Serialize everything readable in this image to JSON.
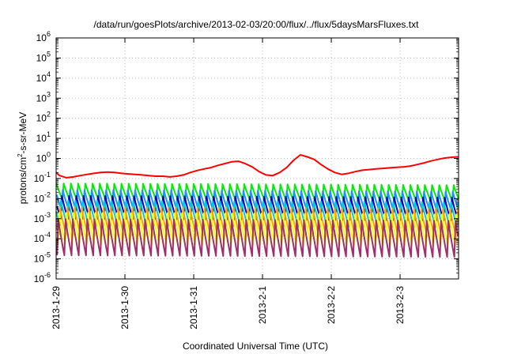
{
  "chart_data": {
    "type": "line",
    "title": "/data/run/goesPlots/archive/2013-02-03/20:00/flux/../flux/5daysMarsFluxes.txt",
    "xlabel": "Coordinated Universal Time (UTC)",
    "ylabel_prefix": "protons/cm",
    "ylabel_sup": "2",
    "ylabel_suffix": "-s-sr-MeV",
    "y_scale": "log",
    "ylim": [
      1e-06,
      1000000.0
    ],
    "xlim_days": [
      0,
      5.85
    ],
    "x_ticks": [
      "2013-1-29",
      "2013-1-30",
      "2013-1-31",
      "2013-2-1",
      "2013-2-2",
      "2013-2-3"
    ],
    "y_tick_base": "10",
    "y_ticks": [
      {
        "exp": "-6",
        "value": 1e-06
      },
      {
        "exp": "-5",
        "value": 1e-05
      },
      {
        "exp": "-4",
        "value": 0.0001
      },
      {
        "exp": "-3",
        "value": 0.001
      },
      {
        "exp": "-2",
        "value": 0.01
      },
      {
        "exp": "-1",
        "value": 0.1
      },
      {
        "exp": "0",
        "value": 1
      },
      {
        "exp": "1",
        "value": 10
      },
      {
        "exp": "2",
        "value": 100
      },
      {
        "exp": "3",
        "value": 1000
      },
      {
        "exp": "4",
        "value": 10000
      },
      {
        "exp": "5",
        "value": 100000
      },
      {
        "exp": "6",
        "value": 1000000
      }
    ],
    "grid": true,
    "series": [
      {
        "color": "#ff0000",
        "x": [
          0,
          0.05,
          0.15,
          0.25,
          0.35,
          0.45,
          0.55,
          0.65,
          0.75,
          0.85,
          0.95,
          1.05,
          1.15,
          1.25,
          1.35,
          1.45,
          1.55,
          1.65,
          1.75,
          1.85,
          1.95,
          2.05,
          2.15,
          2.25,
          2.35,
          2.45,
          2.55,
          2.65,
          2.75,
          2.85,
          2.95,
          3.05,
          3.15,
          3.25,
          3.35,
          3.45,
          3.55,
          3.65,
          3.75,
          3.85,
          3.95,
          4.05,
          4.15,
          4.25,
          4.35,
          4.45,
          4.55,
          4.65,
          4.75,
          4.85,
          4.95,
          5.05,
          5.15,
          5.25,
          5.35,
          5.45,
          5.55,
          5.65,
          5.75,
          5.85
        ],
        "y": [
          0.2,
          0.14,
          0.11,
          0.12,
          0.14,
          0.16,
          0.18,
          0.2,
          0.21,
          0.2,
          0.18,
          0.17,
          0.16,
          0.15,
          0.14,
          0.13,
          0.13,
          0.12,
          0.13,
          0.15,
          0.2,
          0.25,
          0.3,
          0.35,
          0.45,
          0.55,
          0.68,
          0.72,
          0.55,
          0.38,
          0.22,
          0.15,
          0.14,
          0.2,
          0.35,
          0.8,
          1.5,
          1.2,
          0.9,
          0.5,
          0.3,
          0.2,
          0.16,
          0.18,
          0.22,
          0.26,
          0.28,
          0.3,
          0.32,
          0.34,
          0.36,
          0.38,
          0.42,
          0.5,
          0.6,
          0.75,
          0.9,
          1.05,
          1.15,
          1.2
        ]
      },
      {
        "color": "#00ee00",
        "base": 0.022,
        "amp": 2.6,
        "decay": 0.025
      },
      {
        "color": "#1e90ff",
        "base": 0.0085,
        "amp": 3.2,
        "decay": 0.023
      },
      {
        "color": "#0000cd",
        "base": 0.0036,
        "amp": 3.8,
        "decay": 0.021
      },
      {
        "color": "#00ced1",
        "base": 0.0019,
        "amp": 4.2,
        "decay": 0.02
      },
      {
        "color": "#ffa500",
        "base": 0.00075,
        "amp": 5.0,
        "decay": 0.019
      },
      {
        "color": "#ffff00",
        "base": 0.00033,
        "amp": 6.0,
        "decay": 0.017
      },
      {
        "color": "#a0306c",
        "base": 0.00012,
        "amp": 8.0,
        "decay": 0.015
      }
    ]
  }
}
